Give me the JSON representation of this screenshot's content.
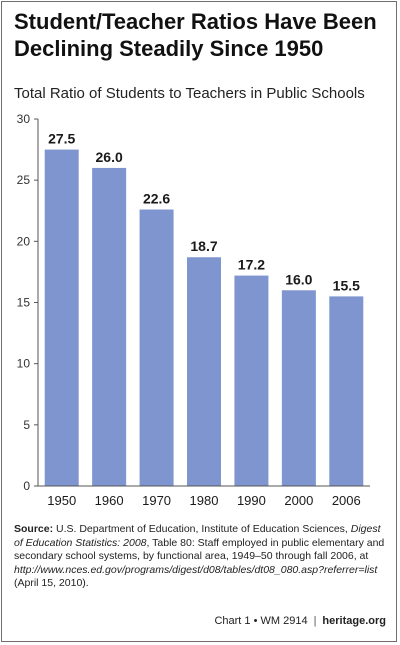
{
  "title": "Student/Teacher Ratios Have Been\nDeclining Steadily Since 1950",
  "subtitle": "Total Ratio of Students to Teachers in Public Schools",
  "chart_data": {
    "type": "bar",
    "categories": [
      "1950",
      "1960",
      "1970",
      "1980",
      "1990",
      "2000",
      "2006"
    ],
    "values": [
      27.5,
      26.0,
      22.6,
      18.7,
      17.2,
      16.0,
      15.5
    ],
    "data_labels": [
      "27.5",
      "26.0",
      "22.6",
      "18.7",
      "17.2",
      "16.0",
      "15.5"
    ],
    "ylim": [
      0,
      30
    ],
    "yticks": [
      "0",
      "5",
      "10",
      "15",
      "20",
      "25",
      "30"
    ],
    "grid": false,
    "xlabel": "",
    "ylabel": "",
    "bar_color": "#7f95cf"
  },
  "source": {
    "label": "Source:",
    "part1": " U.S. Department of Education, Institute of Education Sciences, ",
    "publication": "Digest of Education Statistics: 2008",
    "part2": ", Table 80: Staff employed in public elementary and secondary school systems, by functional area, 1949–50 through fall 2006, at ",
    "url": "http://www.nces.ed.gov/programs/digest/d08/tables/dt08_080.asp?referrer=list",
    "part3": " (April 15, 2010)."
  },
  "footer": {
    "chart_id": "Chart 1 • WM 2914",
    "brand": "heritage.org"
  }
}
